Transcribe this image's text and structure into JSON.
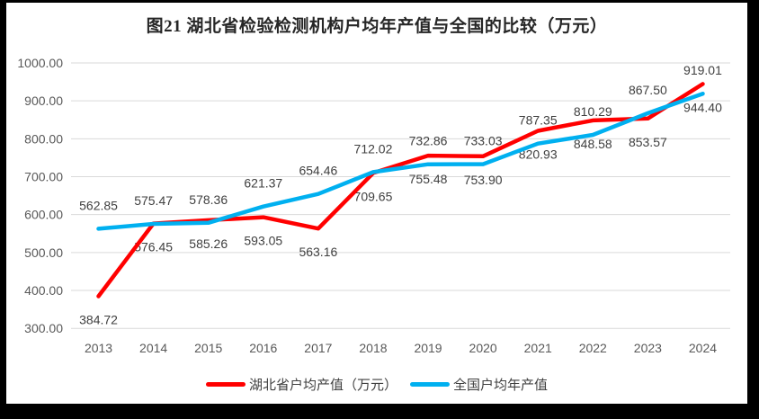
{
  "chart_data": {
    "type": "line",
    "title": "图21  湖北省检验检测机构户均年产值与全国的比较（万元）",
    "categories": [
      "2013",
      "2014",
      "2015",
      "2016",
      "2017",
      "2018",
      "2019",
      "2020",
      "2021",
      "2022",
      "2023",
      "2024"
    ],
    "series": [
      {
        "key": "hubei-average-output",
        "name": "湖北省户均产值（万元）",
        "color": "#ff0000",
        "label_position": "below",
        "values": [
          384.72,
          576.45,
          585.26,
          593.05,
          563.16,
          709.65,
          755.48,
          753.9,
          820.93,
          848.58,
          853.57,
          944.4
        ]
      },
      {
        "key": "national-average-output",
        "name": "全国户均年产值",
        "color": "#00b0f0",
        "label_position": "above",
        "values": [
          562.85,
          575.47,
          578.36,
          621.37,
          654.46,
          712.02,
          732.86,
          733.03,
          787.35,
          810.29,
          867.5,
          919.01
        ]
      }
    ],
    "y_axis": {
      "min": 300,
      "max": 1000,
      "step": 100,
      "tick_labels": [
        "1000.00",
        "900.00",
        "800.00",
        "700.00",
        "600.00",
        "500.00",
        "400.00",
        "300.00"
      ]
    },
    "grid": true,
    "legend_position": "bottom",
    "styles": {
      "gridline_color": "#d9d9d9",
      "tick_label_color": "#595959",
      "data_label_color": "#3f3f3f",
      "title_color": "#262626",
      "frame_color": "#000000"
    }
  }
}
